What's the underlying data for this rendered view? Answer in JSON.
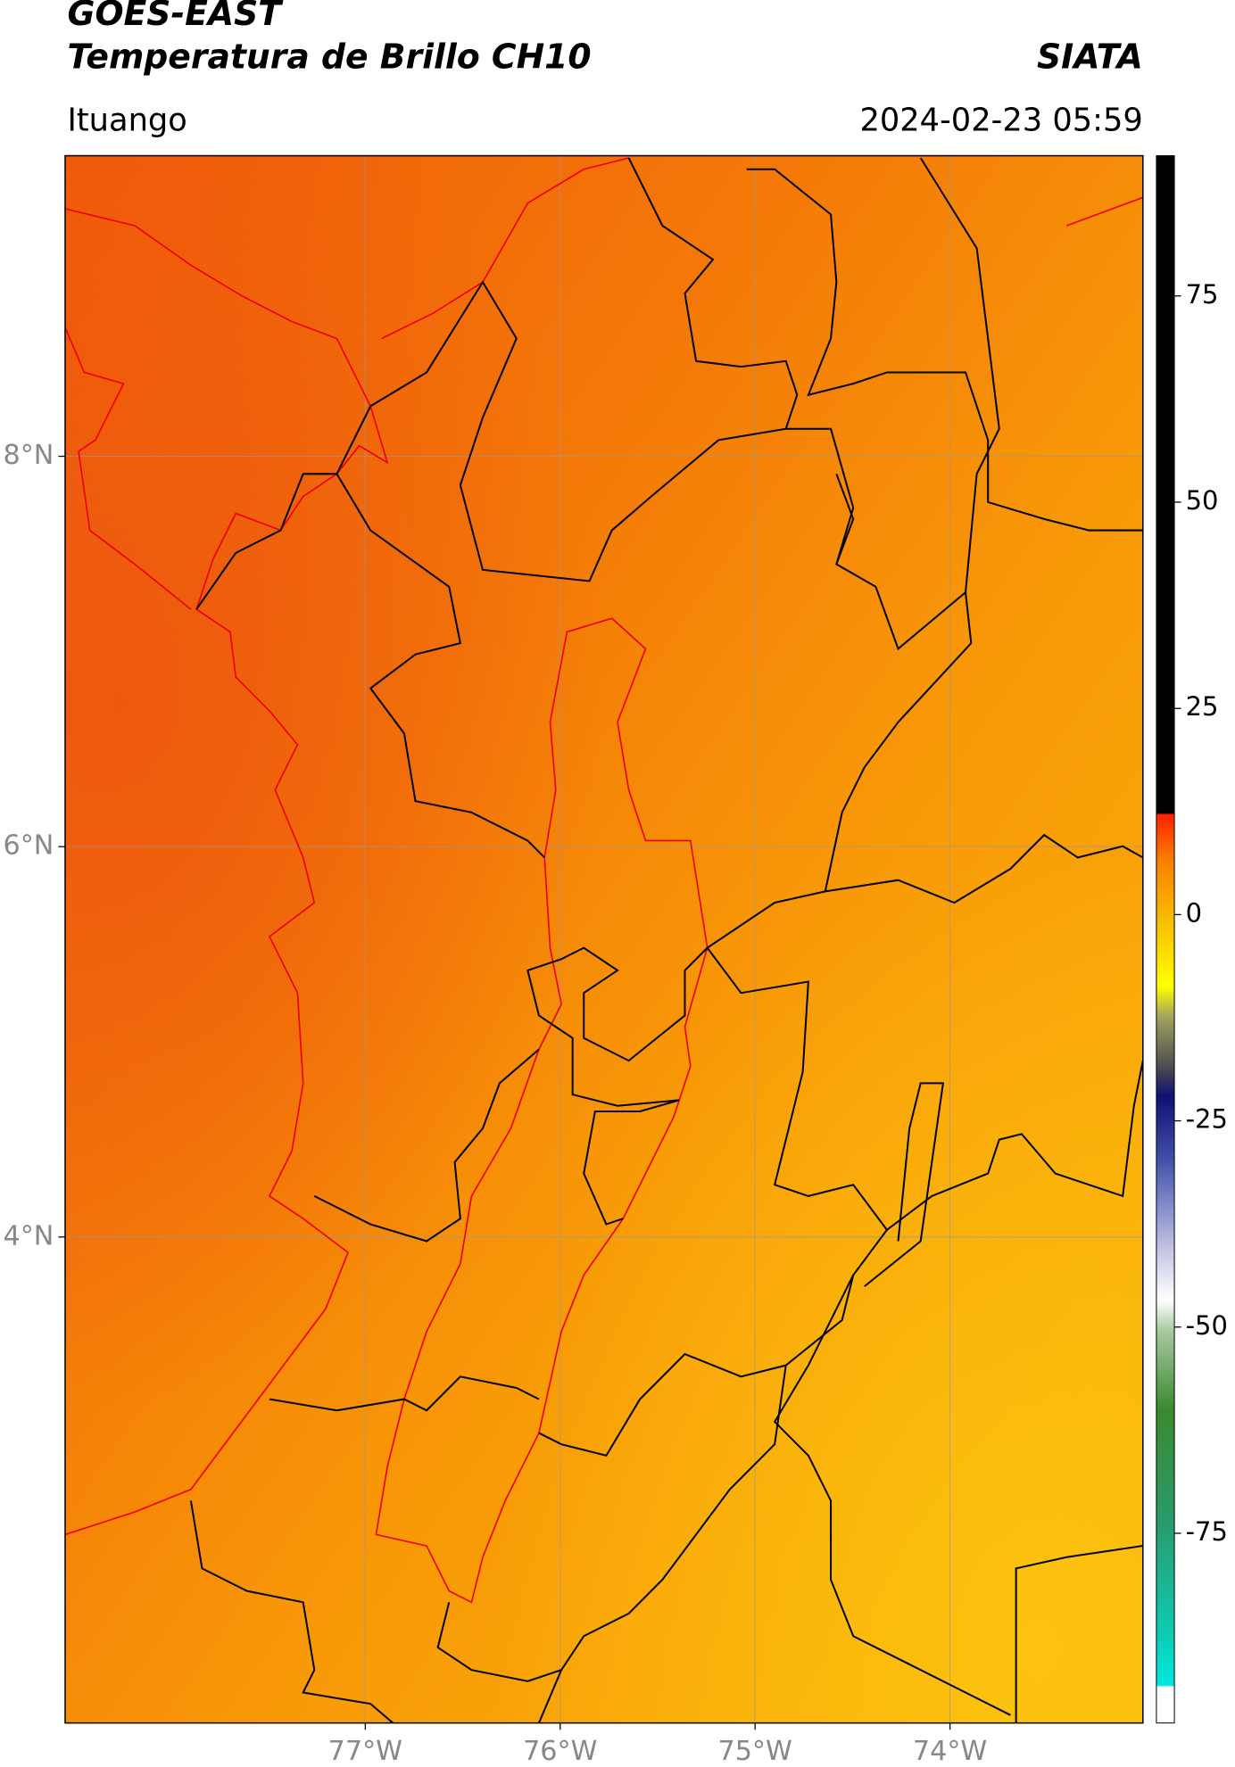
{
  "header": {
    "product": "GOES-EAST",
    "title": "Temperatura de Brillo CH10",
    "institution": "SIATA",
    "location": "Ituango",
    "datetime": "2024-02-23 05:59"
  },
  "map": {
    "lon_lim": [
      -78.54,
      -73.01
    ],
    "lat_lim": [
      1.51,
      9.54
    ],
    "lon_ticks": [
      {
        "value": -77,
        "label": "77°W"
      },
      {
        "value": -76,
        "label": "76°W"
      },
      {
        "value": -75,
        "label": "75°W"
      },
      {
        "value": -74,
        "label": "74°W"
      }
    ],
    "lat_ticks": [
      {
        "value": 8,
        "label": "8°N"
      },
      {
        "value": 6,
        "label": "6°N"
      },
      {
        "value": 4,
        "label": "4°N"
      }
    ],
    "grid": true
  },
  "colorbar": {
    "range": [
      -98,
      92
    ],
    "ticks": [
      75,
      50,
      25,
      0,
      -25,
      -50,
      -75
    ]
  }
}
